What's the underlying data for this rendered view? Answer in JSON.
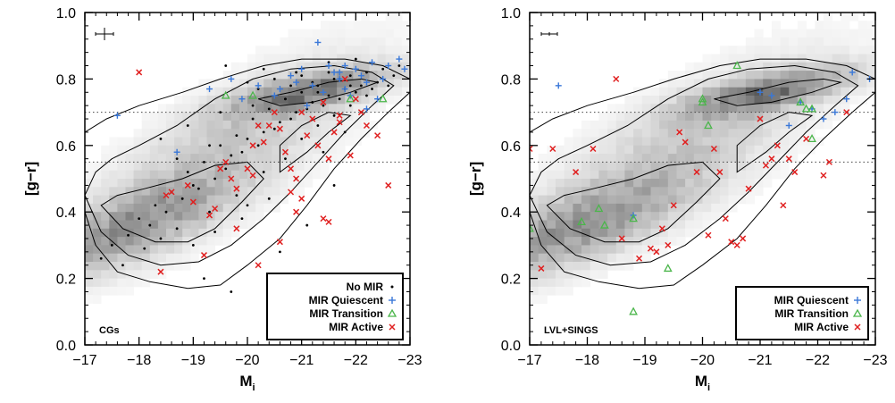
{
  "colors": {
    "no_mir": "#000000",
    "quiescent": "#3a78d8",
    "transition": "#4bb64b",
    "active": "#e02020",
    "contour": "#000000",
    "density": "#6e6e6e"
  },
  "chart_data": [
    {
      "type": "scatter",
      "panel_label": "CGs",
      "xlabel": "M",
      "xlabel_sub": "i",
      "ylabel": "[g−r]",
      "xlim": [
        -17,
        -23
      ],
      "ylim": [
        0.0,
        1.0
      ],
      "x_ticks": [
        -17,
        -18,
        -19,
        -20,
        -21,
        -22,
        -23
      ],
      "x_tick_labels": [
        "−17",
        "−18",
        "−19",
        "−20",
        "−21",
        "−22",
        "−23"
      ],
      "y_ticks": [
        0.0,
        0.2,
        0.4,
        0.6,
        0.8,
        1.0
      ],
      "y_tick_labels": [
        "0.0",
        "0.2",
        "0.4",
        "0.6",
        "0.8",
        "1.0"
      ],
      "hlines": [
        0.55,
        0.7
      ],
      "grid": false,
      "legend_position": "bottom-right",
      "legend": [
        {
          "label": "No MIR",
          "marker": "dot",
          "series": "no_mir"
        },
        {
          "label": "MIR Quiescent",
          "marker": "plus",
          "series": "quiescent"
        },
        {
          "label": "MIR Transition",
          "marker": "triangle",
          "series": "transition"
        },
        {
          "label": "MIR Active",
          "marker": "x",
          "series": "active"
        }
      ],
      "series": [
        {
          "key": "no_mir",
          "marker": "dot",
          "x": [
            -18.6,
            -18.9,
            -19.2,
            -19.5,
            -19.8,
            -20.1,
            -20.4,
            -20.7,
            -21.0,
            -21.3,
            -21.6,
            -21.9,
            -22.2,
            -22.5,
            -22.8,
            -18.0,
            -18.3,
            -19.0,
            -19.4,
            -19.7,
            -20.0,
            -20.3,
            -20.6,
            -20.9,
            -21.2,
            -21.5,
            -21.8,
            -22.1,
            -22.4,
            -22.7,
            -17.5,
            -17.8,
            -18.2,
            -18.5,
            -18.8,
            -19.1,
            -19.6,
            -19.9,
            -20.2,
            -20.5,
            -20.8,
            -21.1,
            -21.4,
            -21.7,
            -22.0,
            -22.3,
            -22.6,
            -17.3,
            -17.7,
            -18.1,
            -18.4,
            -18.7,
            -19.3,
            -19.8,
            -20.3,
            -20.7,
            -21.0,
            -21.3,
            -21.6,
            -21.9,
            -22.2,
            -19.0,
            -19.4,
            -19.9,
            -20.4,
            -20.9,
            -21.4,
            -21.8,
            -22.1,
            -20.0,
            -20.5,
            -21.0,
            -21.5,
            -20.2,
            -20.8,
            -21.2,
            -21.7,
            -19.2,
            -19.7,
            -20.6,
            -21.1,
            -21.6,
            -18.4,
            -18.9,
            -19.5,
            -20.1,
            -20.7,
            -21.3,
            -21.9,
            -19.6,
            -20.3,
            -20.9,
            -21.5,
            -22.0,
            -18.7,
            -19.3,
            -20.0
          ],
          "y": [
            0.46,
            0.52,
            0.55,
            0.6,
            0.63,
            0.68,
            0.71,
            0.74,
            0.76,
            0.78,
            0.8,
            0.81,
            0.82,
            0.83,
            0.84,
            0.38,
            0.42,
            0.48,
            0.5,
            0.57,
            0.62,
            0.64,
            0.67,
            0.7,
            0.73,
            0.75,
            0.77,
            0.78,
            0.79,
            0.81,
            0.3,
            0.33,
            0.36,
            0.4,
            0.44,
            0.47,
            0.53,
            0.58,
            0.6,
            0.65,
            0.68,
            0.71,
            0.72,
            0.74,
            0.76,
            0.77,
            0.78,
            0.26,
            0.24,
            0.29,
            0.32,
            0.35,
            0.4,
            0.45,
            0.52,
            0.56,
            0.62,
            0.66,
            0.69,
            0.72,
            0.75,
            0.3,
            0.34,
            0.38,
            0.44,
            0.5,
            0.58,
            0.64,
            0.7,
            0.79,
            0.8,
            0.81,
            0.82,
            0.77,
            0.78,
            0.79,
            0.8,
            0.2,
            0.16,
            0.28,
            0.36,
            0.48,
            0.62,
            0.66,
            0.7,
            0.72,
            0.74,
            0.76,
            0.78,
            0.84,
            0.83,
            0.82,
            0.85,
            0.86,
            0.56,
            0.6,
            0.42
          ]
        },
        {
          "key": "quiescent",
          "marker": "plus",
          "x": [
            -17.6,
            -18.7,
            -19.3,
            -19.7,
            -20.2,
            -20.5,
            -20.8,
            -21.0,
            -21.2,
            -21.3,
            -21.5,
            -21.6,
            -21.7,
            -21.8,
            -21.9,
            -22.0,
            -22.1,
            -22.2,
            -22.3,
            -22.4,
            -22.5,
            -22.6,
            -22.8,
            -21.1,
            -21.4,
            -20.9,
            -21.8,
            -22.2,
            -19.9,
            -20.6,
            -21.7,
            -22.9
          ],
          "y": [
            0.69,
            0.58,
            0.77,
            0.8,
            0.78,
            0.75,
            0.81,
            0.83,
            0.78,
            0.91,
            0.84,
            0.82,
            0.8,
            0.77,
            0.75,
            0.83,
            0.81,
            0.79,
            0.85,
            0.74,
            0.8,
            0.84,
            0.86,
            0.72,
            0.76,
            0.79,
            0.84,
            0.71,
            0.74,
            0.77,
            0.82,
            0.83
          ]
        },
        {
          "key": "transition",
          "marker": "triangle",
          "x": [
            -19.6,
            -20.1,
            -21.9,
            -22.5
          ],
          "y": [
            0.75,
            0.75,
            0.74,
            0.74
          ]
        },
        {
          "key": "active",
          "marker": "x",
          "x": [
            -18.0,
            -18.4,
            -18.6,
            -18.9,
            -19.0,
            -19.3,
            -19.5,
            -19.6,
            -19.7,
            -19.8,
            -20.0,
            -20.1,
            -20.2,
            -20.3,
            -20.4,
            -20.5,
            -20.6,
            -20.7,
            -20.8,
            -20.9,
            -21.0,
            -21.1,
            -21.2,
            -21.3,
            -21.4,
            -21.5,
            -21.6,
            -21.7,
            -21.8,
            -21.9,
            -22.0,
            -22.1,
            -22.2,
            -22.4,
            -22.6,
            -19.4,
            -19.8,
            -20.2,
            -20.6,
            -21.0,
            -21.4,
            -18.5,
            -19.2,
            -20.9,
            -21.5,
            -20.1,
            -20.8,
            -21.7
          ],
          "y": [
            0.82,
            0.22,
            0.46,
            0.48,
            0.43,
            0.39,
            0.53,
            0.55,
            0.5,
            0.47,
            0.53,
            0.6,
            0.66,
            0.61,
            0.66,
            0.7,
            0.65,
            0.58,
            0.53,
            0.5,
            0.7,
            0.63,
            0.68,
            0.6,
            0.73,
            0.56,
            0.64,
            0.69,
            0.8,
            0.57,
            0.74,
            0.7,
            0.66,
            0.63,
            0.48,
            0.41,
            0.35,
            0.24,
            0.31,
            0.44,
            0.38,
            0.45,
            0.27,
            0.4,
            0.37,
            0.51,
            0.46,
            0.67
          ]
        }
      ]
    },
    {
      "type": "scatter",
      "panel_label": "LVL+SINGS",
      "xlabel": "M",
      "xlabel_sub": "i",
      "ylabel": "[g−r]",
      "xlim": [
        -17,
        -23
      ],
      "ylim": [
        0.0,
        1.0
      ],
      "x_ticks": [
        -17,
        -18,
        -19,
        -20,
        -21,
        -22,
        -23
      ],
      "x_tick_labels": [
        "−17",
        "−18",
        "−19",
        "−20",
        "−21",
        "−22",
        "−23"
      ],
      "y_ticks": [
        0.0,
        0.2,
        0.4,
        0.6,
        0.8,
        1.0
      ],
      "y_tick_labels": [
        "0.0",
        "0.2",
        "0.4",
        "0.6",
        "0.8",
        "1.0"
      ],
      "hlines": [
        0.55,
        0.7
      ],
      "grid": false,
      "legend_position": "bottom-right",
      "legend": [
        {
          "label": "MIR Quiescent",
          "marker": "plus",
          "series": "quiescent"
        },
        {
          "label": "MIR Transition",
          "marker": "triangle",
          "series": "transition"
        },
        {
          "label": "MIR Active",
          "marker": "x",
          "series": "active"
        }
      ],
      "series": [
        {
          "key": "quiescent",
          "marker": "plus",
          "x": [
            -17.5,
            -18.8,
            -21.0,
            -21.2,
            -21.7,
            -21.9,
            -22.1,
            -22.3,
            -22.5,
            -22.6,
            -22.9,
            -21.5
          ],
          "y": [
            0.78,
            0.39,
            0.76,
            0.75,
            0.73,
            0.71,
            0.68,
            0.7,
            0.74,
            0.82,
            0.8,
            0.66
          ]
        },
        {
          "key": "transition",
          "marker": "triangle",
          "x": [
            -17.0,
            -17.9,
            -18.2,
            -18.3,
            -18.8,
            -19.4,
            -20.0,
            -20.0,
            -20.1,
            -20.6,
            -21.7,
            -21.8,
            -21.9,
            -21.9,
            -18.8
          ],
          "y": [
            0.35,
            0.37,
            0.41,
            0.36,
            0.38,
            0.23,
            0.74,
            0.73,
            0.66,
            0.84,
            0.73,
            0.71,
            0.71,
            0.62,
            0.1
          ]
        },
        {
          "key": "transition_edge",
          "marker": "triangle",
          "x": [],
          "y": []
        },
        {
          "key": "active",
          "marker": "x",
          "x": [
            -17.0,
            -17.2,
            -17.4,
            -17.8,
            -18.1,
            -18.5,
            -18.6,
            -18.9,
            -19.1,
            -19.3,
            -19.4,
            -19.5,
            -19.6,
            -19.7,
            -19.9,
            -20.1,
            -20.3,
            -20.4,
            -20.5,
            -20.6,
            -20.7,
            -20.8,
            -21.0,
            -21.1,
            -21.2,
            -21.4,
            -21.5,
            -21.6,
            -21.8,
            -22.1,
            -22.2,
            -22.5,
            -19.2,
            -20.2,
            -21.3
          ],
          "y": [
            0.59,
            0.23,
            0.59,
            0.52,
            0.59,
            0.8,
            0.32,
            0.26,
            0.29,
            0.35,
            0.3,
            0.42,
            0.64,
            0.61,
            0.52,
            0.33,
            0.52,
            0.38,
            0.31,
            0.3,
            0.32,
            0.47,
            0.68,
            0.54,
            0.56,
            0.42,
            0.56,
            0.52,
            0.62,
            0.51,
            0.55,
            0.7,
            0.28,
            0.59,
            0.6
          ]
        }
      ]
    }
  ]
}
